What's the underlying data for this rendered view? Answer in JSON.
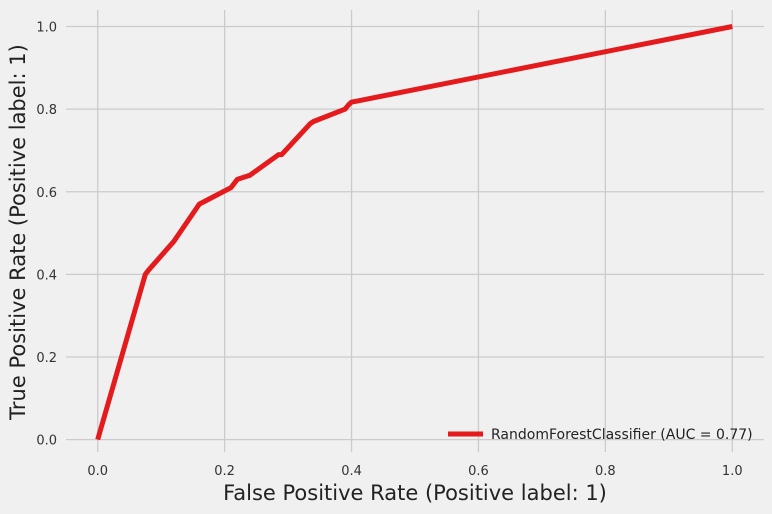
{
  "chart_data": {
    "type": "line",
    "title": "",
    "xlabel": "False Positive Rate (Positive label: 1)",
    "ylabel": "True Positive Rate (Positive label: 1)",
    "xlim": [
      -0.05,
      1.05
    ],
    "ylim": [
      -0.03,
      1.04
    ],
    "xticks": [
      0.0,
      0.2,
      0.4,
      0.6,
      0.8,
      1.0
    ],
    "yticks": [
      0.0,
      0.2,
      0.4,
      0.6,
      0.8,
      1.0
    ],
    "xtick_labels": [
      "0.0",
      "0.2",
      "0.4",
      "0.6",
      "0.8",
      "1.0"
    ],
    "ytick_labels": [
      "0.0",
      "0.2",
      "0.4",
      "0.6",
      "0.8",
      "1.0"
    ],
    "grid": true,
    "legend_position": "lower-right",
    "series": [
      {
        "name": "RandomForestClassifier (AUC = 0.77)",
        "color": "#e41a1c",
        "x": [
          0.0,
          0.075,
          0.08,
          0.12,
          0.16,
          0.21,
          0.22,
          0.23,
          0.24,
          0.285,
          0.29,
          0.335,
          0.34,
          0.39,
          0.395,
          0.4,
          0.41,
          1.0
        ],
        "y": [
          0.0,
          0.4,
          0.41,
          0.48,
          0.57,
          0.61,
          0.63,
          0.635,
          0.64,
          0.69,
          0.69,
          0.765,
          0.77,
          0.8,
          0.81,
          0.817,
          0.82,
          1.0
        ]
      }
    ]
  }
}
